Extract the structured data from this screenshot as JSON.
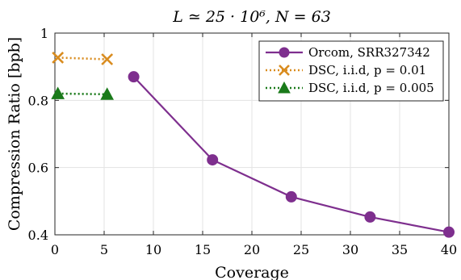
{
  "chart_data": {
    "type": "line",
    "title": "L ≃ 25 · 10⁶, N = 63",
    "xlabel": "Coverage",
    "ylabel": "Compression Ratio [bpb]",
    "xlim": [
      0,
      40
    ],
    "ylim": [
      0.4,
      1.0
    ],
    "xticks": [
      0,
      5,
      10,
      15,
      20,
      25,
      30,
      35,
      40
    ],
    "yticks": [
      0.4,
      0.6,
      0.8,
      1.0
    ],
    "ytick_labels": [
      "0.4",
      "0.6",
      "0.8",
      "1"
    ],
    "grid": true,
    "legend_position": "top-right",
    "series": [
      {
        "name": "Orcom, SRR327342",
        "color": "#7e2f8e",
        "marker": "circle",
        "line": "solid",
        "x": [
          8,
          16,
          24,
          32,
          40
        ],
        "y": [
          0.87,
          0.623,
          0.513,
          0.453,
          0.408
        ]
      },
      {
        "name": "DSC, i.i.d, p = 0.01",
        "color": "#d98c1f",
        "marker": "x",
        "line": "dotted",
        "x": [
          0.3,
          5.3
        ],
        "y": [
          0.927,
          0.922
        ]
      },
      {
        "name": "DSC, i.i.d, p = 0.005",
        "color": "#1a7a1a",
        "marker": "triangle",
        "line": "dotted",
        "x": [
          0.3,
          5.3
        ],
        "y": [
          0.82,
          0.818
        ]
      }
    ]
  }
}
